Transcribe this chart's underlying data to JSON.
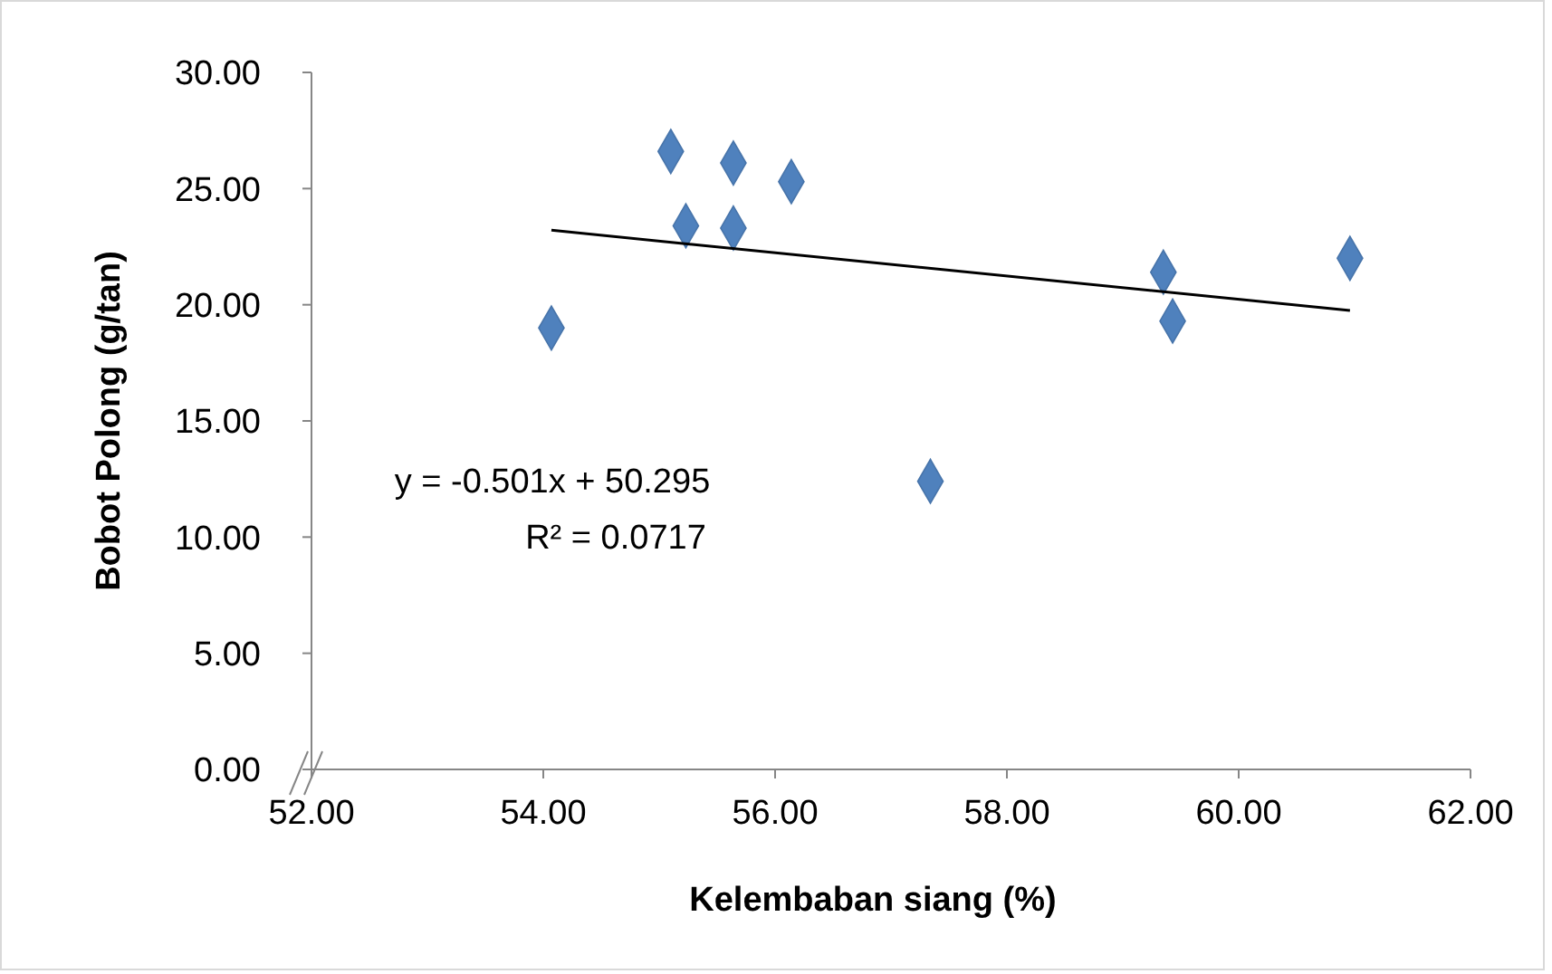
{
  "chart_data": {
    "type": "scatter",
    "xlabel": "Kelembaban siang (%)",
    "ylabel": "Bobot Polong (g/tan)",
    "xlim": [
      52,
      62
    ],
    "ylim": [
      0,
      30
    ],
    "xticks": [
      {
        "value": 52,
        "label": "52.00"
      },
      {
        "value": 54,
        "label": "54.00"
      },
      {
        "value": 56,
        "label": "56.00"
      },
      {
        "value": 58,
        "label": "58.00"
      },
      {
        "value": 60,
        "label": "60.00"
      },
      {
        "value": 62,
        "label": "62.00"
      }
    ],
    "yticks": [
      {
        "value": 0,
        "label": "0.00"
      },
      {
        "value": 5,
        "label": "5.00"
      },
      {
        "value": 10,
        "label": "10.00"
      },
      {
        "value": 15,
        "label": "15.00"
      },
      {
        "value": 20,
        "label": "20.00"
      },
      {
        "value": 25,
        "label": "25.00"
      },
      {
        "value": 30,
        "label": "30.00"
      }
    ],
    "grid": false,
    "marker": "diamond",
    "series": [
      {
        "color": "#4f81bd",
        "x": [
          54.07,
          55.1,
          55.23,
          55.64,
          55.64,
          56.14,
          57.34,
          59.35,
          59.43,
          60.96
        ],
        "values": [
          19.0,
          26.6,
          23.4,
          26.1,
          23.3,
          25.3,
          12.4,
          21.4,
          19.3,
          22.0
        ]
      },
      {
        "type": "line",
        "color": "#000000",
        "marker": "none",
        "line_style": "solid",
        "x": [
          54.07,
          60.96
        ],
        "values": [
          23.21,
          19.75
        ]
      }
    ],
    "annotations": [
      "y = -0.501x + 50.295",
      "R² = 0.0717"
    ]
  }
}
